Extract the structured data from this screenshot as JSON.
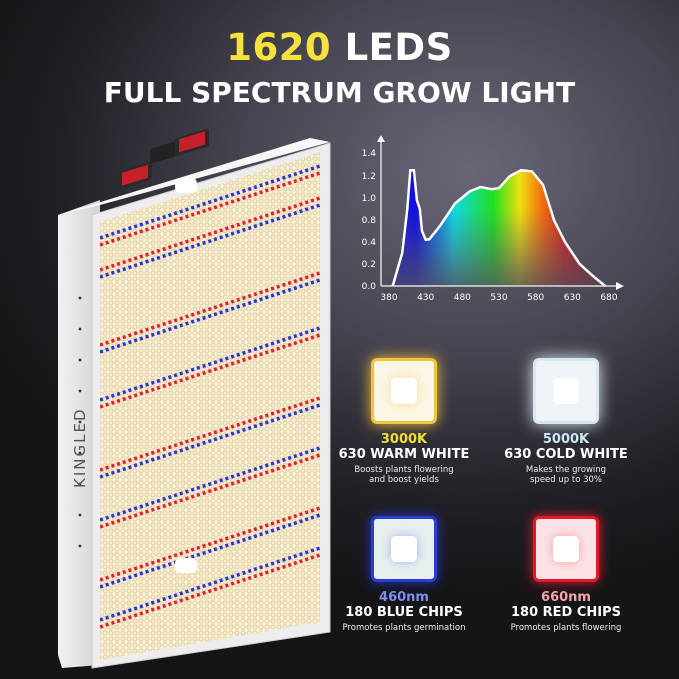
{
  "header": {
    "count": "1620",
    "count_suffix": "LEDS",
    "subtitle": "FULL SPECTRUM GROW LIGHT",
    "highlight_color": "#f6e23c"
  },
  "product": {
    "brand": "KINGLED",
    "led_colors": {
      "warm": "#f3dfa0",
      "cold": "#ffffff",
      "blue": "#2a35d8",
      "red": "#e0202e"
    }
  },
  "chart_data": {
    "type": "area",
    "title": "",
    "xlabel": "",
    "ylabel": "",
    "x_ticks": [
      "380",
      "430",
      "480",
      "530",
      "580",
      "630",
      "680"
    ],
    "y_ticks": [
      "0.0",
      "0.2",
      "0.4",
      "0.8",
      "1.0",
      "1.2",
      "1.4"
    ],
    "xlim": [
      380,
      680
    ],
    "ylim": [
      0,
      1.4
    ],
    "grid": false,
    "series": [
      {
        "x": [
          385,
          398,
          405,
          409,
          414,
          418,
          422,
          425,
          430,
          435,
          450,
          470,
          490,
          505,
          520,
          530,
          545,
          560,
          575,
          590,
          605,
          620,
          640,
          660,
          675
        ],
        "y": [
          0,
          0.3,
          0.9,
          1.25,
          1.25,
          0.98,
          0.9,
          0.6,
          0.44,
          0.45,
          0.7,
          0.95,
          1.06,
          1.1,
          1.08,
          1.09,
          1.2,
          1.25,
          1.24,
          1.12,
          0.8,
          0.4,
          0.2,
          0.08,
          0
        ]
      }
    ]
  },
  "cards": [
    {
      "spec": "3000K",
      "name": "630 WARM WHITE",
      "desc1": "Boosts plants flowering",
      "desc2": "and boost yields",
      "color": "#f3e03a"
    },
    {
      "spec": "5000K",
      "name": "630 COLD WHITE",
      "desc1": "Makes the growing",
      "desc2": "speed up to 30%",
      "color": "#cfe6f5"
    },
    {
      "spec": "460nm",
      "name": "180 BLUE CHIPS",
      "desc1": "Promotes plants germination",
      "desc2": "",
      "color": "#7d8ff0"
    },
    {
      "spec": "660nm",
      "name": "180 RED CHIPS",
      "desc1": "Promotes plants flowering",
      "desc2": "",
      "color": "#f3a6a8"
    }
  ]
}
